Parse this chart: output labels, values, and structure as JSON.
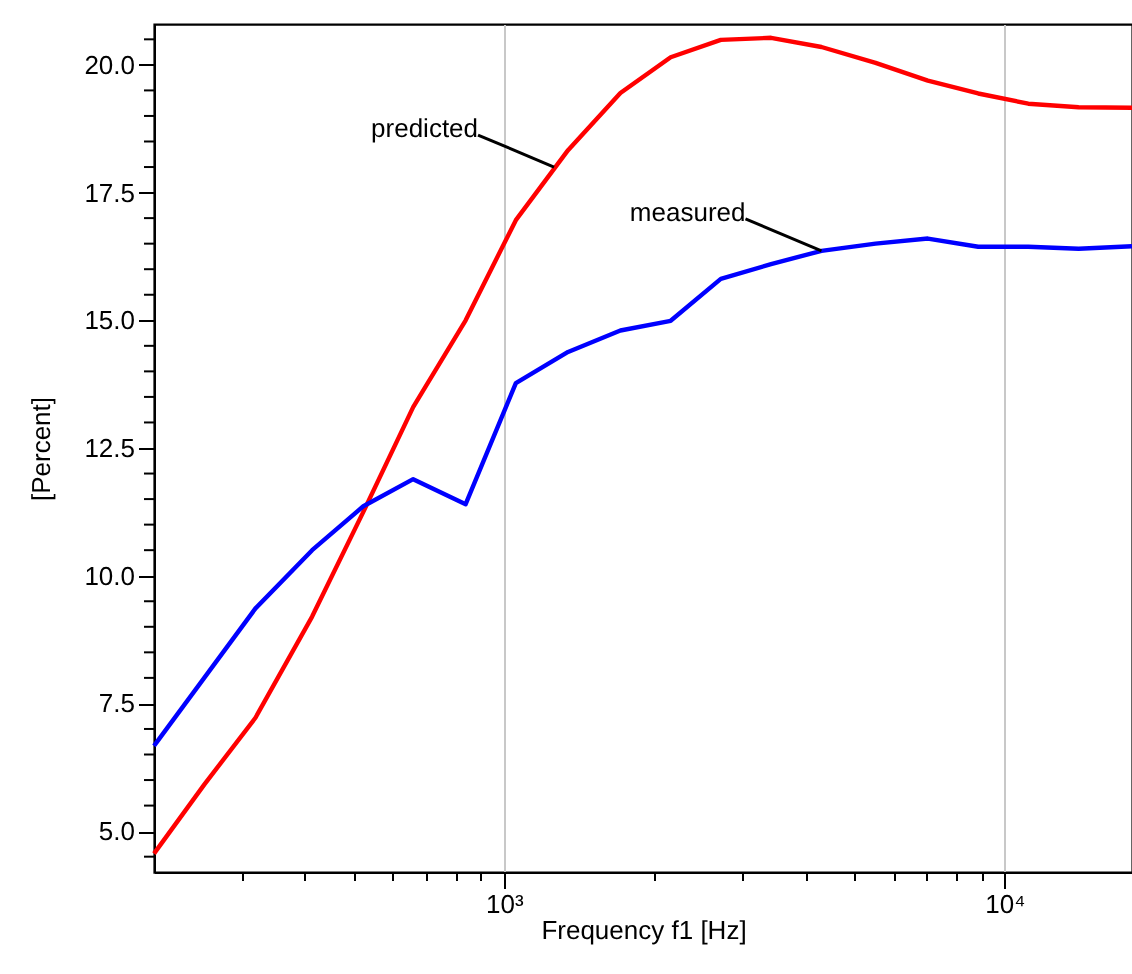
{
  "chart_data": {
    "type": "line",
    "xlabel": "Frequency f1  [Hz]",
    "ylabel": "[Percent]",
    "log": "x",
    "grid": "x",
    "marker": "none",
    "line_style": "solid",
    "xlim": [
      200,
      18000
    ],
    "ylim": [
      4.2,
      20.8
    ],
    "xticks": [
      {
        "value": 300,
        "label": null
      },
      {
        "value": 400,
        "label": null
      },
      {
        "value": 500,
        "label": null
      },
      {
        "value": 600,
        "label": null
      },
      {
        "value": 700,
        "label": null
      },
      {
        "value": 800,
        "label": null
      },
      {
        "value": 900,
        "label": null
      },
      {
        "value": 1000,
        "label": "10³"
      },
      {
        "value": 2000,
        "label": null
      },
      {
        "value": 3000,
        "label": null
      },
      {
        "value": 4000,
        "label": null
      },
      {
        "value": 5000,
        "label": null
      },
      {
        "value": 6000,
        "label": null
      },
      {
        "value": 7000,
        "label": null
      },
      {
        "value": 8000,
        "label": null
      },
      {
        "value": 9000,
        "label": null
      },
      {
        "value": 10000,
        "label": "10⁴"
      }
    ],
    "yticks": [
      {
        "value": 4.5,
        "label": null
      },
      {
        "value": 5,
        "label": "5.0"
      },
      {
        "value": 5.5,
        "label": null
      },
      {
        "value": 6,
        "label": null
      },
      {
        "value": 6.5,
        "label": null
      },
      {
        "value": 7,
        "label": null
      },
      {
        "value": 7.5,
        "label": "7.5"
      },
      {
        "value": 8,
        "label": null
      },
      {
        "value": 8.5,
        "label": null
      },
      {
        "value": 9,
        "label": null
      },
      {
        "value": 9.5,
        "label": null
      },
      {
        "value": 10,
        "label": "10.0"
      },
      {
        "value": 10.5,
        "label": null
      },
      {
        "value": 11,
        "label": null
      },
      {
        "value": 11.5,
        "label": null
      },
      {
        "value": 12,
        "label": null
      },
      {
        "value": 12.5,
        "label": "12.5"
      },
      {
        "value": 13,
        "label": null
      },
      {
        "value": 13.5,
        "label": null
      },
      {
        "value": 14,
        "label": null
      },
      {
        "value": 14.5,
        "label": null
      },
      {
        "value": 15,
        "label": "15.0"
      },
      {
        "value": 15.5,
        "label": null
      },
      {
        "value": 16,
        "label": null
      },
      {
        "value": 16.5,
        "label": null
      },
      {
        "value": 17,
        "label": null
      },
      {
        "value": 17.5,
        "label": "17.5"
      },
      {
        "value": 18,
        "label": null
      },
      {
        "value": 18.5,
        "label": null
      },
      {
        "value": 19,
        "label": null
      },
      {
        "value": 19.5,
        "label": null
      },
      {
        "value": 20,
        "label": "20.0"
      },
      {
        "value": 20.5,
        "label": null
      }
    ],
    "x": [
      200,
      252,
      319,
      414,
      524,
      659,
      839,
      1057,
      1344,
      1710,
      2155,
      2714,
      3420,
      4313,
      5532,
      7036,
      8870,
      11170,
      14080,
      18000
    ],
    "series": [
      {
        "color": "#ff0000",
        "values": [
          4.56,
          5.91,
          7.22,
          9.2,
          11.25,
          13.3,
          15.0,
          16.96,
          18.33,
          19.45,
          20.15,
          20.49,
          20.53,
          20.35,
          20.04,
          19.69,
          19.44,
          19.24,
          19.17,
          19.16
        ]
      },
      {
        "color": "#0000ff",
        "values": [
          6.67,
          8.0,
          9.36,
          10.5,
          11.36,
          11.89,
          11.4,
          13.77,
          14.38,
          14.8,
          14.99,
          15.81,
          16.1,
          16.36,
          16.5,
          16.6,
          16.44,
          16.44,
          16.4,
          16.45
        ]
      }
    ],
    "annotations": [
      {
        "text": "predicted",
        "x": 1260,
        "y": 18.0
      },
      {
        "text": "measured",
        "x": 4313,
        "y": 16.36
      }
    ]
  }
}
